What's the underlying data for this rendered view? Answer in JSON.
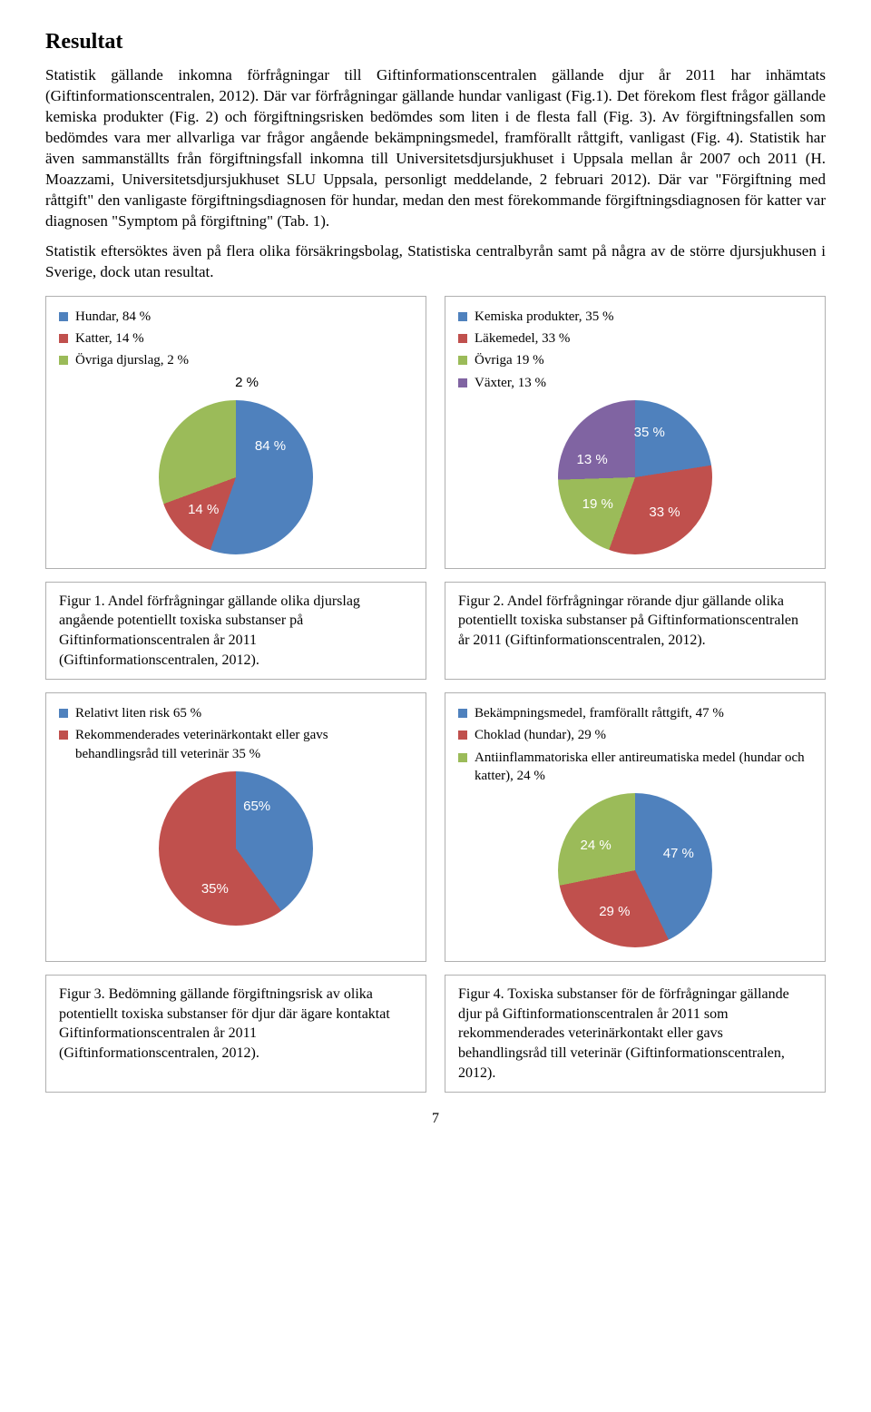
{
  "heading": "Resultat",
  "paragraphs": {
    "p1": "Statistik gällande inkomna förfrågningar till Giftinformationscentralen gällande djur år 2011 har inhämtats (Giftinformationscentralen, 2012). Där var förfrågningar gällande hundar vanligast (Fig.1). Det förekom flest frågor gällande kemiska produkter (Fig. 2) och förgiftningsrisken bedömdes som liten i de flesta fall (Fig. 3). Av förgiftningsfallen som bedömdes vara mer allvarliga var frågor angående bekämpningsmedel, framförallt råttgift, vanligast (Fig. 4). Statistik har även sammanställts från förgiftningsfall inkomna till Universitetsdjursjukhuset i Uppsala mellan år 2007 och 2011 (H. Moazzami, Universitetsdjursjukhuset SLU Uppsala, personligt meddelande, 2 februari 2012). Där var \"Förgiftning med råttgift\" den vanligaste förgiftningsdiagnosen för hundar, medan den mest förekommande förgiftningsdiagnosen för katter var diagnosen \"Symptom på förgiftning\" (Tab. 1).",
    "p2": "Statistik eftersöktes även på flera olika försäkringsbolag, Statistiska centralbyrån samt på några av de större djursjukhusen i Sverige, dock utan resultat."
  },
  "colors": {
    "blue": "#4f81bd",
    "red": "#c0504d",
    "green": "#9bbb59",
    "purple": "#8064a2",
    "border": "#b0b0b0",
    "label": "#ffffff"
  },
  "fig1": {
    "legend": [
      {
        "label": "Hundar, 84 %",
        "color": "#4f81bd"
      },
      {
        "label": "Katter, 14 %",
        "color": "#c0504d"
      },
      {
        "label": "Övriga djurslag, 2 %",
        "color": "#9bbb59"
      }
    ],
    "slices": [
      {
        "pct": 84,
        "color": "#4f81bd",
        "label": "84 %"
      },
      {
        "pct": 14,
        "color": "#c0504d",
        "label": "14 %"
      },
      {
        "pct": 2,
        "color": "#9bbb59",
        "label": "2 %"
      }
    ],
    "size": 170,
    "start_deg": -103,
    "extra_label": "2 %",
    "caption": "Figur 1. Andel förfrågningar gällande olika djurslag angående potentiellt toxiska substanser på Giftinformationscentralen år 2011 (Giftinformationscentralen, 2012)."
  },
  "fig2": {
    "legend": [
      {
        "label": "Kemiska produkter, 35 %",
        "color": "#4f81bd"
      },
      {
        "label": "Läkemedel, 33 %",
        "color": "#c0504d"
      },
      {
        "label": "Övriga 19 %",
        "color": "#9bbb59"
      },
      {
        "label": "Växter, 13 %",
        "color": "#8064a2"
      }
    ],
    "slices": [
      {
        "pct": 35,
        "color": "#4f81bd",
        "label": "35 %"
      },
      {
        "pct": 33,
        "color": "#c0504d",
        "label": "33 %"
      },
      {
        "pct": 19,
        "color": "#9bbb59",
        "label": "19 %"
      },
      {
        "pct": 13,
        "color": "#8064a2",
        "label": "13 %"
      }
    ],
    "size": 170,
    "start_deg": -45,
    "caption": "Figur 2. Andel förfrågningar rörande djur gällande olika potentiellt toxiska substanser på Giftinformationscentralen år 2011 (Giftinformationscentralen, 2012)."
  },
  "fig3": {
    "legend": [
      {
        "label": "Relativt liten risk 65 %",
        "color": "#4f81bd"
      },
      {
        "label": "Rekommenderades veterinärkontakt eller gavs behandlingsråd till veterinär 35 %",
        "color": "#c0504d"
      }
    ],
    "slices": [
      {
        "pct": 65,
        "color": "#4f81bd",
        "label": "65%"
      },
      {
        "pct": 35,
        "color": "#c0504d",
        "label": "35%"
      }
    ],
    "size": 170,
    "start_deg": -90,
    "caption": "Figur 3. Bedömning gällande förgiftningsrisk av olika potentiellt toxiska substanser för djur där ägare kontaktat Giftinformationscentralen år 2011 (Giftinformationscentralen, 2012)."
  },
  "fig4": {
    "legend": [
      {
        "label": "Bekämpningsmedel, framförallt råttgift, 47 %",
        "color": "#4f81bd"
      },
      {
        "label": "Choklad (hundar), 29 %",
        "color": "#c0504d"
      },
      {
        "label": "Antiinflammatoriska eller antireumatiska medel (hundar och katter), 24 %",
        "color": "#9bbb59"
      }
    ],
    "slices": [
      {
        "pct": 47,
        "color": "#4f81bd",
        "label": "47 %"
      },
      {
        "pct": 29,
        "color": "#c0504d",
        "label": "29 %"
      },
      {
        "pct": 24,
        "color": "#9bbb59",
        "label": "24 %"
      }
    ],
    "size": 170,
    "start_deg": -15,
    "caption": "Figur 4. Toxiska substanser för de förfrågningar gällande djur på Giftinformationscentralen år 2011 som rekommenderades veterinärkontakt eller gavs behandlingsråd till veterinär (Giftinformationscentralen, 2012)."
  },
  "page_number": "7"
}
